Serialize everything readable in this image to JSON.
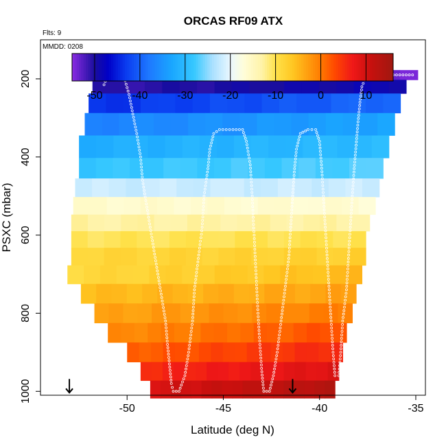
{
  "chart_data": {
    "type": "heatmap",
    "title": "ORCAS RF09 ATX",
    "flights_label": "Flts: 9",
    "date_label": "MMDD: 0208",
    "xlabel": "Latitude (deg N)",
    "ylabel": "PSXC (mbar)",
    "xlim": [
      -54.5,
      -34.5
    ],
    "ylim": [
      1010,
      100
    ],
    "x_ticks": [
      -50,
      -45,
      -40,
      -35
    ],
    "x_tick_labels": [
      "-50",
      "-45",
      "-40",
      "-35"
    ],
    "y_ticks": [
      200,
      400,
      600,
      800,
      1000
    ],
    "y_tick_labels": [
      "200",
      "400",
      "600",
      "800",
      "1000"
    ],
    "colorbar": {
      "min": -55,
      "max": 16,
      "ticks": [
        -50,
        -40,
        -30,
        -20,
        -10,
        0,
        10
      ],
      "tick_labels": [
        "-50",
        "-40",
        "-30",
        "-20",
        "-10",
        "0",
        "10"
      ],
      "colors": [
        [
          -55,
          "#8a2be2"
        ],
        [
          -50,
          "#1a0e9e"
        ],
        [
          -47,
          "#0000c8"
        ],
        [
          -43,
          "#0a3cf0"
        ],
        [
          -38,
          "#1e78ff"
        ],
        [
          -33,
          "#1aa6ff"
        ],
        [
          -28,
          "#36c8ff"
        ],
        [
          -24,
          "#a9e0ff"
        ],
        [
          -20,
          "#eaf7ff"
        ],
        [
          -17,
          "#fffdd8"
        ],
        [
          -13,
          "#fff3a8"
        ],
        [
          -10,
          "#ffe14a"
        ],
        [
          -6,
          "#ffc520"
        ],
        [
          -3,
          "#ffa010"
        ],
        [
          0,
          "#ff7a00"
        ],
        [
          3,
          "#ff4a00"
        ],
        [
          7,
          "#f01818"
        ],
        [
          11,
          "#c8100e"
        ],
        [
          16,
          "#a01810"
        ]
      ]
    },
    "rows": [
      {
        "p": 190,
        "lat_min": -51.6,
        "lat_max": -34.9,
        "temp_south": -54.0,
        "temp_north": -54.0
      },
      {
        "p": 215,
        "lat_min": -51.8,
        "lat_max": -35.5,
        "temp_south": -51.0,
        "temp_north": -48.5
      },
      {
        "p": 260,
        "lat_min": -52.0,
        "lat_max": -35.8,
        "temp_south": -44.0,
        "temp_north": -39.0
      },
      {
        "p": 315,
        "lat_min": -52.2,
        "lat_max": -36.1,
        "temp_south": -37.0,
        "temp_north": -33.0
      },
      {
        "p": 375,
        "lat_min": -52.5,
        "lat_max": -36.4,
        "temp_south": -32.0,
        "temp_north": -30.0
      },
      {
        "p": 430,
        "lat_min": -52.5,
        "lat_max": -36.7,
        "temp_south": -28.5,
        "temp_north": -27.0
      },
      {
        "p": 480,
        "lat_min": -52.7,
        "lat_max": -36.9,
        "temp_south": -22.0,
        "temp_north": -22.0
      },
      {
        "p": 525,
        "lat_min": -52.8,
        "lat_max": -37.1,
        "temp_south": -16.0,
        "temp_north": -16.5
      },
      {
        "p": 570,
        "lat_min": -52.9,
        "lat_max": -37.4,
        "temp_south": -13.0,
        "temp_north": -13.0
      },
      {
        "p": 610,
        "lat_min": -52.9,
        "lat_max": -37.6,
        "temp_south": -10.5,
        "temp_north": -10.0
      },
      {
        "p": 655,
        "lat_min": -52.9,
        "lat_max": -37.6,
        "temp_south": -8.5,
        "temp_north": -7.5
      },
      {
        "p": 700,
        "lat_min": -53.1,
        "lat_max": -37.8,
        "temp_south": -9.0,
        "temp_north": -5.0
      },
      {
        "p": 750,
        "lat_min": -52.4,
        "lat_max": -38.1,
        "temp_south": -5.5,
        "temp_north": -3.0
      },
      {
        "p": 800,
        "lat_min": -51.7,
        "lat_max": -38.3,
        "temp_south": -3.5,
        "temp_north": 0.0
      },
      {
        "p": 850,
        "lat_min": -51.0,
        "lat_max": -38.6,
        "temp_south": -1.5,
        "temp_north": 3.0
      },
      {
        "p": 900,
        "lat_min": -50.0,
        "lat_max": -38.8,
        "temp_south": 1.5,
        "temp_north": 6.0
      },
      {
        "p": 950,
        "lat_min": -49.3,
        "lat_max": -39.0,
        "temp_south": 5.5,
        "temp_north": 9.0
      },
      {
        "p": 995,
        "lat_min": -48.8,
        "lat_max": -39.2,
        "temp_south": 9.5,
        "temp_north": 13.5
      }
    ],
    "flight_track": [
      [
        -51.2,
        215
      ],
      [
        -51.0,
        190
      ],
      [
        -50.5,
        190
      ],
      [
        -50.1,
        205
      ],
      [
        -49.9,
        240
      ],
      [
        -49.7,
        290
      ],
      [
        -49.5,
        340
      ],
      [
        -49.3,
        400
      ],
      [
        -49.2,
        460
      ],
      [
        -49.0,
        520
      ],
      [
        -48.8,
        580
      ],
      [
        -48.6,
        640
      ],
      [
        -48.4,
        700
      ],
      [
        -48.2,
        760
      ],
      [
        -48.0,
        820
      ],
      [
        -47.9,
        880
      ],
      [
        -47.8,
        930
      ],
      [
        -47.7,
        980
      ],
      [
        -47.6,
        1000
      ],
      [
        -47.3,
        1000
      ],
      [
        -47.0,
        960
      ],
      [
        -46.8,
        900
      ],
      [
        -46.6,
        820
      ],
      [
        -46.5,
        740
      ],
      [
        -46.3,
        660
      ],
      [
        -46.1,
        580
      ],
      [
        -46.0,
        500
      ],
      [
        -45.8,
        430
      ],
      [
        -45.7,
        380
      ],
      [
        -45.5,
        340
      ],
      [
        -45.2,
        330
      ],
      [
        -44.5,
        330
      ],
      [
        -44.0,
        330
      ],
      [
        -43.8,
        360
      ],
      [
        -43.6,
        420
      ],
      [
        -43.5,
        500
      ],
      [
        -43.4,
        600
      ],
      [
        -43.3,
        700
      ],
      [
        -43.2,
        800
      ],
      [
        -43.1,
        880
      ],
      [
        -43.0,
        950
      ],
      [
        -42.9,
        1000
      ],
      [
        -42.6,
        1000
      ],
      [
        -42.4,
        960
      ],
      [
        -42.2,
        900
      ],
      [
        -42.0,
        820
      ],
      [
        -41.8,
        740
      ],
      [
        -41.6,
        660
      ],
      [
        -41.5,
        580
      ],
      [
        -41.4,
        500
      ],
      [
        -41.3,
        430
      ],
      [
        -41.2,
        380
      ],
      [
        -41.0,
        340
      ],
      [
        -40.6,
        330
      ],
      [
        -40.2,
        330
      ],
      [
        -40.0,
        360
      ],
      [
        -39.9,
        420
      ],
      [
        -39.8,
        500
      ],
      [
        -39.7,
        580
      ],
      [
        -39.6,
        660
      ],
      [
        -39.5,
        740
      ],
      [
        -39.4,
        820
      ],
      [
        -39.3,
        900
      ],
      [
        -39.2,
        960
      ],
      [
        -39.0,
        960
      ],
      [
        -38.9,
        900
      ],
      [
        -38.8,
        820
      ],
      [
        -38.6,
        740
      ],
      [
        -38.5,
        660
      ],
      [
        -38.4,
        580
      ],
      [
        -38.3,
        500
      ],
      [
        -38.2,
        430
      ],
      [
        -38.1,
        370
      ],
      [
        -38.0,
        310
      ],
      [
        -37.9,
        260
      ],
      [
        -37.8,
        220
      ],
      [
        -37.6,
        195
      ],
      [
        -37.0,
        190
      ],
      [
        -36.0,
        190
      ],
      [
        -35.0,
        190
      ]
    ],
    "arrows": [
      {
        "lat": -53.0,
        "p": 1000
      },
      {
        "lat": -41.4,
        "p": 1000
      }
    ]
  }
}
